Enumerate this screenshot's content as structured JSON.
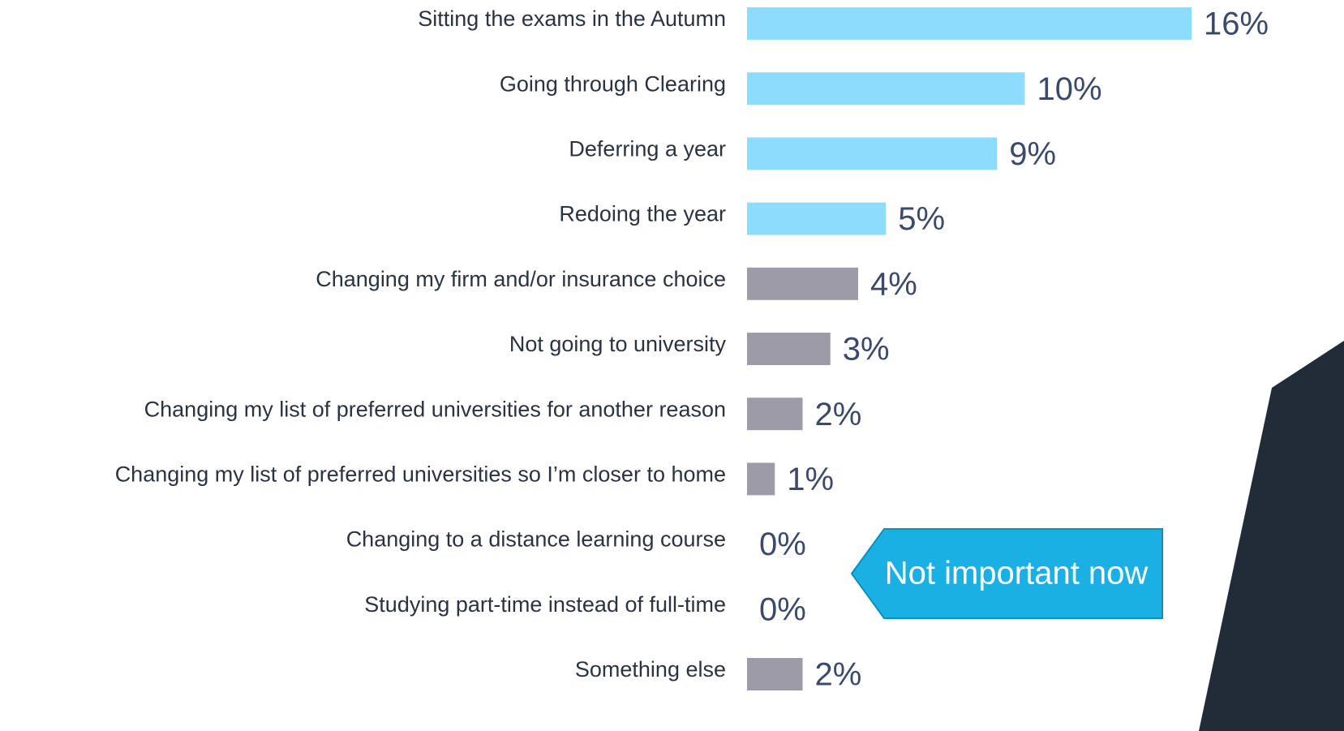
{
  "chart_data": {
    "type": "bar",
    "orientation": "horizontal",
    "categories": [
      "Sitting the exams in the Autumn",
      "Going through Clearing",
      "Deferring a year",
      "Redoing the year",
      "Changing my firm and/or insurance choice",
      "Not going to university",
      "Changing my list of preferred universities for another reason",
      "Changing my list of preferred universities so I’m closer to home",
      "Changing to a distance learning course",
      "Studying part-time instead of full-time",
      "Something else"
    ],
    "values": [
      16,
      10,
      9,
      5,
      4,
      3,
      2,
      1,
      0,
      0,
      2
    ],
    "value_labels": [
      "16%",
      "10%",
      "9%",
      "5%",
      "4%",
      "3%",
      "2%",
      "1%",
      "0%",
      "0%",
      "2%"
    ],
    "colors": [
      "#8ddcfd",
      "#8ddcfd",
      "#8ddcfd",
      "#8ddcfd",
      "#9d9ba8",
      "#9d9ba8",
      "#9d9ba8",
      "#9d9ba8",
      "#9d9ba8",
      "#9d9ba8",
      "#9d9ba8"
    ],
    "annotation": "Not important now"
  }
}
